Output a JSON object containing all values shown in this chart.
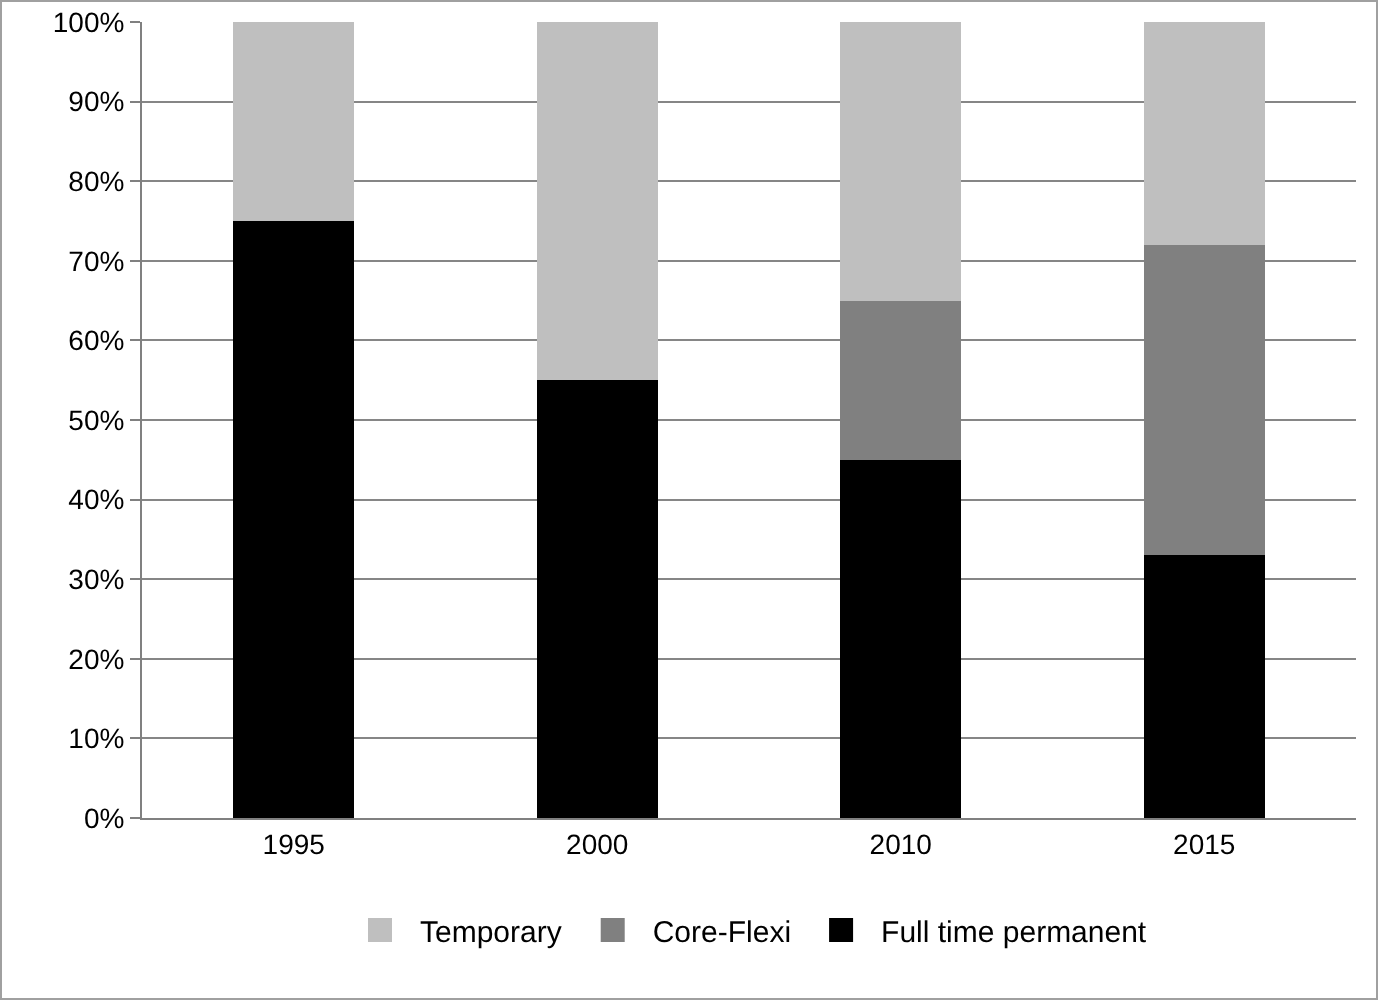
{
  "chart_data": {
    "type": "bar",
    "stacked": true,
    "categories": [
      "1995",
      "2000",
      "2010",
      "2015"
    ],
    "series": [
      {
        "name": "Full time permanent",
        "color": "#000000",
        "values": [
          75,
          55,
          45,
          33
        ]
      },
      {
        "name": "Core-Flexi",
        "color": "#808080",
        "values": [
          0,
          0,
          20,
          39
        ]
      },
      {
        "name": "Temporary",
        "color": "#bfbfbf",
        "values": [
          25,
          45,
          35,
          28
        ]
      }
    ],
    "ylim": [
      0,
      100
    ],
    "yticks": [
      {
        "value": 0,
        "label": "0%"
      },
      {
        "value": 10,
        "label": "10%"
      },
      {
        "value": 20,
        "label": "20%"
      },
      {
        "value": 30,
        "label": "30%"
      },
      {
        "value": 40,
        "label": "40%"
      },
      {
        "value": 50,
        "label": "50%"
      },
      {
        "value": 60,
        "label": "60%"
      },
      {
        "value": 70,
        "label": "70%"
      },
      {
        "value": 80,
        "label": "80%"
      },
      {
        "value": 90,
        "label": "90%"
      },
      {
        "value": 100,
        "label": "100%"
      }
    ],
    "grid": "y",
    "legend": "bottom"
  }
}
